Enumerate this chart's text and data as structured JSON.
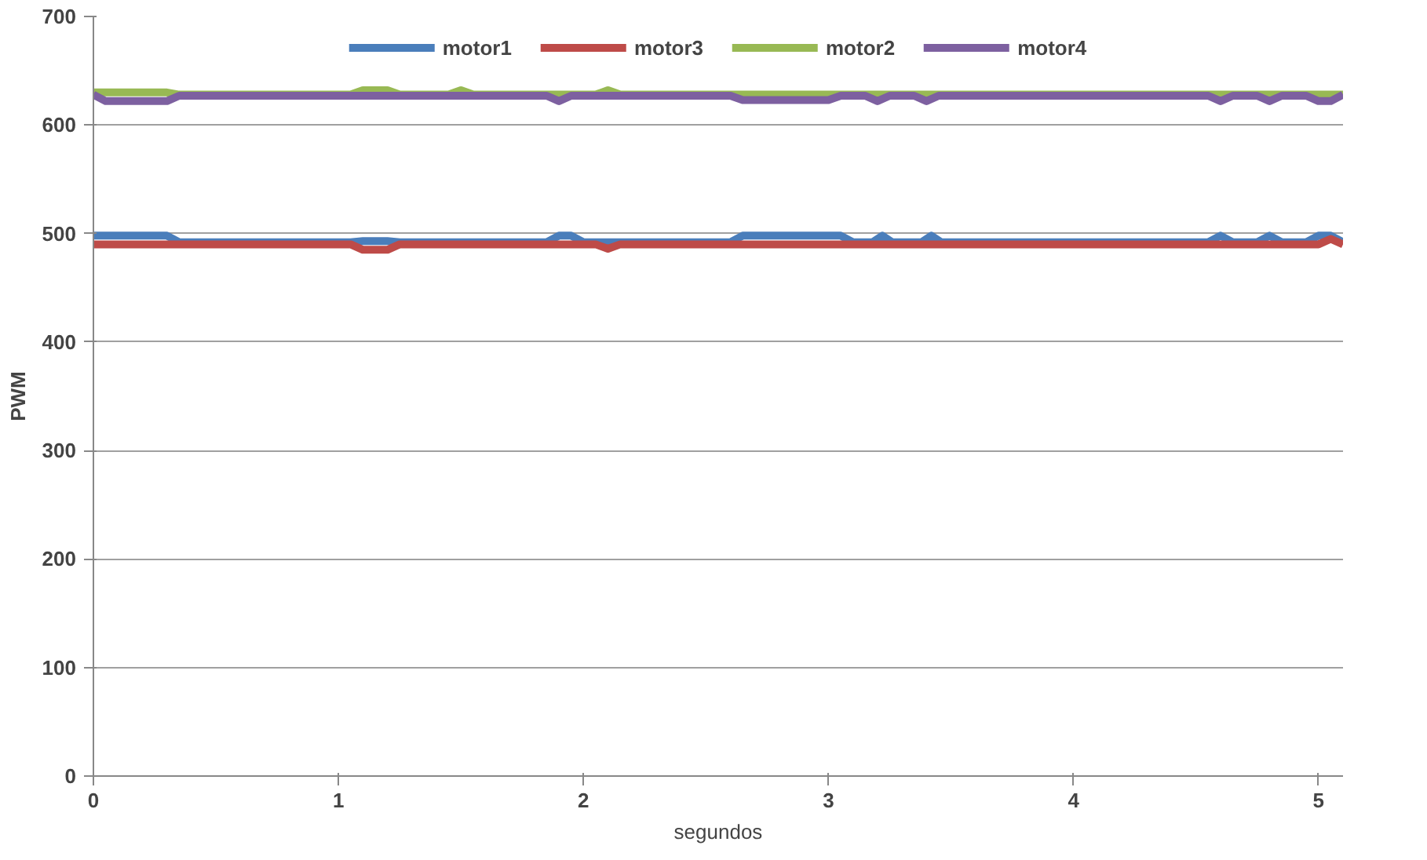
{
  "chart_data": {
    "type": "line",
    "xlabel": "segundos",
    "ylabel": "PWM",
    "xlim": [
      0,
      5.1
    ],
    "ylim": [
      0,
      700
    ],
    "xticks": [
      0,
      1,
      2,
      3,
      4,
      5
    ],
    "yticks": [
      0,
      100,
      200,
      300,
      400,
      500,
      600,
      700
    ],
    "grid": "y",
    "legend": "top",
    "marker": "none",
    "line_style": "solid",
    "series": [
      {
        "name": "motor1",
        "color": "#4a7ebb",
        "x": [
          0,
          0.3,
          0.35,
          1.05,
          1.1,
          1.2,
          1.25,
          1.85,
          1.9,
          1.95,
          2.0,
          2.6,
          2.65,
          3.05,
          3.1,
          3.18,
          3.22,
          3.26,
          3.38,
          3.42,
          3.46,
          4.55,
          4.6,
          4.65,
          4.75,
          4.8,
          4.85,
          4.95,
          5.0,
          5.05,
          5.1
        ],
        "values": [
          498,
          498,
          492,
          492,
          493,
          493,
          492,
          492,
          498,
          498,
          492,
          492,
          498,
          498,
          492,
          492,
          498,
          492,
          492,
          498,
          492,
          492,
          498,
          492,
          492,
          498,
          492,
          492,
          498,
          498,
          492
        ]
      },
      {
        "name": "motor3",
        "color": "#be4b48",
        "x": [
          0,
          1.05,
          1.1,
          1.2,
          1.25,
          2.05,
          2.1,
          2.15,
          5.0,
          5.05,
          5.1
        ],
        "values": [
          490,
          490,
          485,
          485,
          490,
          490,
          486,
          490,
          490,
          495,
          490
        ]
      },
      {
        "name": "motor2",
        "color": "#98b954",
        "x": [
          0,
          0.3,
          0.35,
          1.05,
          1.1,
          1.2,
          1.25,
          1.45,
          1.5,
          1.55,
          2.05,
          2.1,
          2.15,
          2.6,
          2.65,
          3.0,
          3.05,
          5.1
        ],
        "values": [
          630,
          630,
          628,
          628,
          632,
          632,
          628,
          628,
          632,
          628,
          628,
          632,
          628,
          628,
          628,
          628,
          628,
          628
        ]
      },
      {
        "name": "motor4",
        "color": "#7d60a0",
        "x": [
          0,
          0.05,
          0.3,
          0.35,
          1.85,
          1.9,
          1.95,
          2.0,
          2.6,
          2.65,
          3.0,
          3.05,
          3.15,
          3.2,
          3.25,
          3.35,
          3.4,
          3.45,
          4.55,
          4.6,
          4.65,
          4.75,
          4.8,
          4.85,
          4.95,
          5.0,
          5.05,
          5.1
        ],
        "values": [
          628,
          622,
          622,
          627,
          627,
          622,
          627,
          627,
          627,
          623,
          623,
          627,
          627,
          622,
          627,
          627,
          622,
          627,
          627,
          622,
          627,
          627,
          622,
          627,
          627,
          622,
          622,
          628
        ]
      }
    ]
  }
}
